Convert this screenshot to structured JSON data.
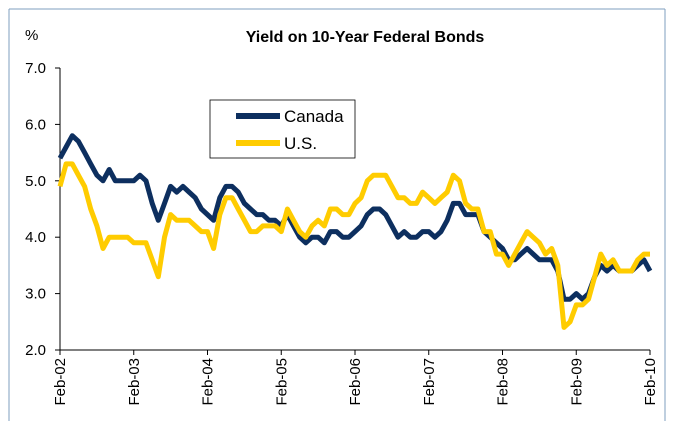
{
  "chart_data": {
    "type": "line",
    "title": "Yield on 10-Year Federal Bonds",
    "y_label": "%",
    "categories": [
      "Feb-02",
      null,
      null,
      null,
      null,
      null,
      null,
      null,
      null,
      null,
      null,
      null,
      "Feb-03",
      null,
      null,
      null,
      null,
      null,
      null,
      null,
      null,
      null,
      null,
      null,
      "Feb-04",
      null,
      null,
      null,
      null,
      null,
      null,
      null,
      null,
      null,
      null,
      null,
      "Feb-05",
      null,
      null,
      null,
      null,
      null,
      null,
      null,
      null,
      null,
      null,
      null,
      "Feb-06",
      null,
      null,
      null,
      null,
      null,
      null,
      null,
      null,
      null,
      null,
      null,
      "Feb-07",
      null,
      null,
      null,
      null,
      null,
      null,
      null,
      null,
      null,
      null,
      null,
      "Feb-08",
      null,
      null,
      null,
      null,
      null,
      null,
      null,
      null,
      null,
      null,
      null,
      "Feb-09",
      null,
      null,
      null,
      null,
      null,
      null,
      null,
      null,
      null,
      null,
      null,
      "Feb-10"
    ],
    "series": [
      {
        "name": "Canada",
        "color": "#0d2f5f",
        "values": [
          5.4,
          5.6,
          5.8,
          5.7,
          5.5,
          5.3,
          5.1,
          5.0,
          5.2,
          5.0,
          5.0,
          5.0,
          5.0,
          5.1,
          5.0,
          4.6,
          4.3,
          4.6,
          4.9,
          4.8,
          4.9,
          4.8,
          4.7,
          4.5,
          4.4,
          4.3,
          4.7,
          4.9,
          4.9,
          4.8,
          4.6,
          4.5,
          4.4,
          4.4,
          4.3,
          4.3,
          4.2,
          4.4,
          4.2,
          4.0,
          3.9,
          4.0,
          4.0,
          3.9,
          4.1,
          4.1,
          4.0,
          4.0,
          4.1,
          4.2,
          4.4,
          4.5,
          4.5,
          4.4,
          4.2,
          4.0,
          4.1,
          4.0,
          4.0,
          4.1,
          4.1,
          4.0,
          4.1,
          4.3,
          4.6,
          4.6,
          4.4,
          4.4,
          4.4,
          4.1,
          4.0,
          3.9,
          3.8,
          3.6,
          3.6,
          3.7,
          3.8,
          3.7,
          3.6,
          3.6,
          3.6,
          3.4,
          2.9,
          2.9,
          3.0,
          2.9,
          3.0,
          3.3,
          3.5,
          3.4,
          3.5,
          3.4,
          3.4,
          3.4,
          3.5,
          3.6,
          3.4
        ]
      },
      {
        "name": "U.S.",
        "color": "#ffcc00",
        "values": [
          4.9,
          5.3,
          5.3,
          5.1,
          4.9,
          4.5,
          4.2,
          3.8,
          4.0,
          4.0,
          4.0,
          4.0,
          3.9,
          3.9,
          3.9,
          3.6,
          3.3,
          4.0,
          4.4,
          4.3,
          4.3,
          4.3,
          4.2,
          4.1,
          4.1,
          3.8,
          4.4,
          4.7,
          4.7,
          4.5,
          4.3,
          4.1,
          4.1,
          4.2,
          4.2,
          4.2,
          4.1,
          4.5,
          4.3,
          4.1,
          4.0,
          4.2,
          4.3,
          4.2,
          4.5,
          4.5,
          4.4,
          4.4,
          4.6,
          4.7,
          5.0,
          5.1,
          5.1,
          5.1,
          4.9,
          4.7,
          4.7,
          4.6,
          4.6,
          4.8,
          4.7,
          4.6,
          4.7,
          4.8,
          5.1,
          5.0,
          4.6,
          4.5,
          4.5,
          4.1,
          4.1,
          3.7,
          3.7,
          3.5,
          3.7,
          3.9,
          4.1,
          4.0,
          3.9,
          3.7,
          3.8,
          3.5,
          2.4,
          2.5,
          2.8,
          2.8,
          2.9,
          3.3,
          3.7,
          3.5,
          3.6,
          3.4,
          3.4,
          3.4,
          3.6,
          3.7,
          3.7
        ]
      }
    ],
    "ylim": [
      2,
      7
    ],
    "yticks": [
      {
        "value": 2,
        "label": "2.0"
      },
      {
        "value": 3,
        "label": "3.0"
      },
      {
        "value": 4,
        "label": "4.0"
      },
      {
        "value": 5,
        "label": "5.0"
      },
      {
        "value": 6,
        "label": "6.0"
      },
      {
        "value": 7,
        "label": "7.0"
      }
    ],
    "grid": false,
    "legend": "upper center"
  }
}
